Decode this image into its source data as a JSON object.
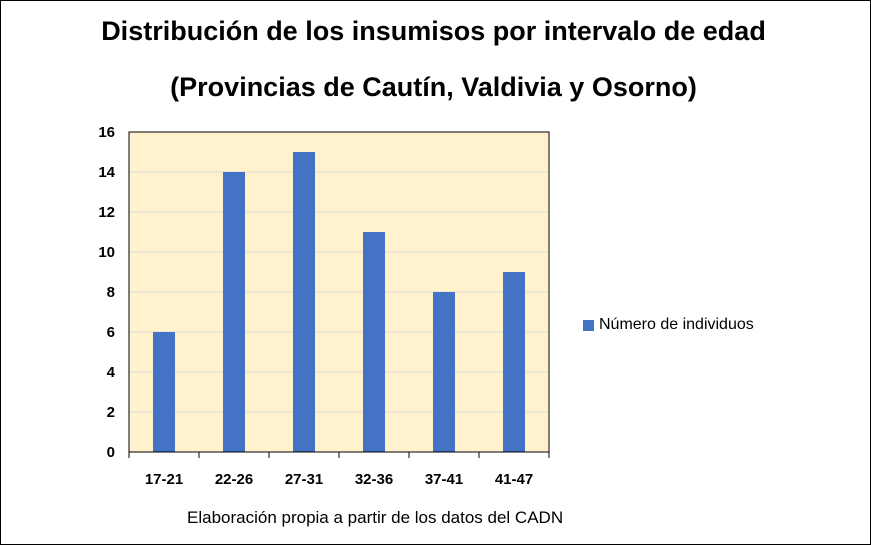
{
  "chart_data": {
    "type": "bar",
    "title": "Distribución de los insumisos por intervalo de edad",
    "subtitle": "(Provincias de Cautín, Valdivia y Osorno)",
    "categories": [
      "17-21",
      "22-26",
      "27-31",
      "32-36",
      "37-41",
      "41-47"
    ],
    "series": [
      {
        "name": "Número de individuos",
        "values": [
          6,
          14,
          15,
          11,
          8,
          9
        ],
        "color": "#4472c4"
      }
    ],
    "ylim": [
      0,
      16
    ],
    "y_ticks": [
      0,
      2,
      4,
      6,
      8,
      10,
      12,
      14,
      16
    ],
    "grid": true,
    "plot_background": "#fff2cc",
    "legend_position": "right"
  },
  "note": "Elaboración propia a partir de los datos del CADN"
}
